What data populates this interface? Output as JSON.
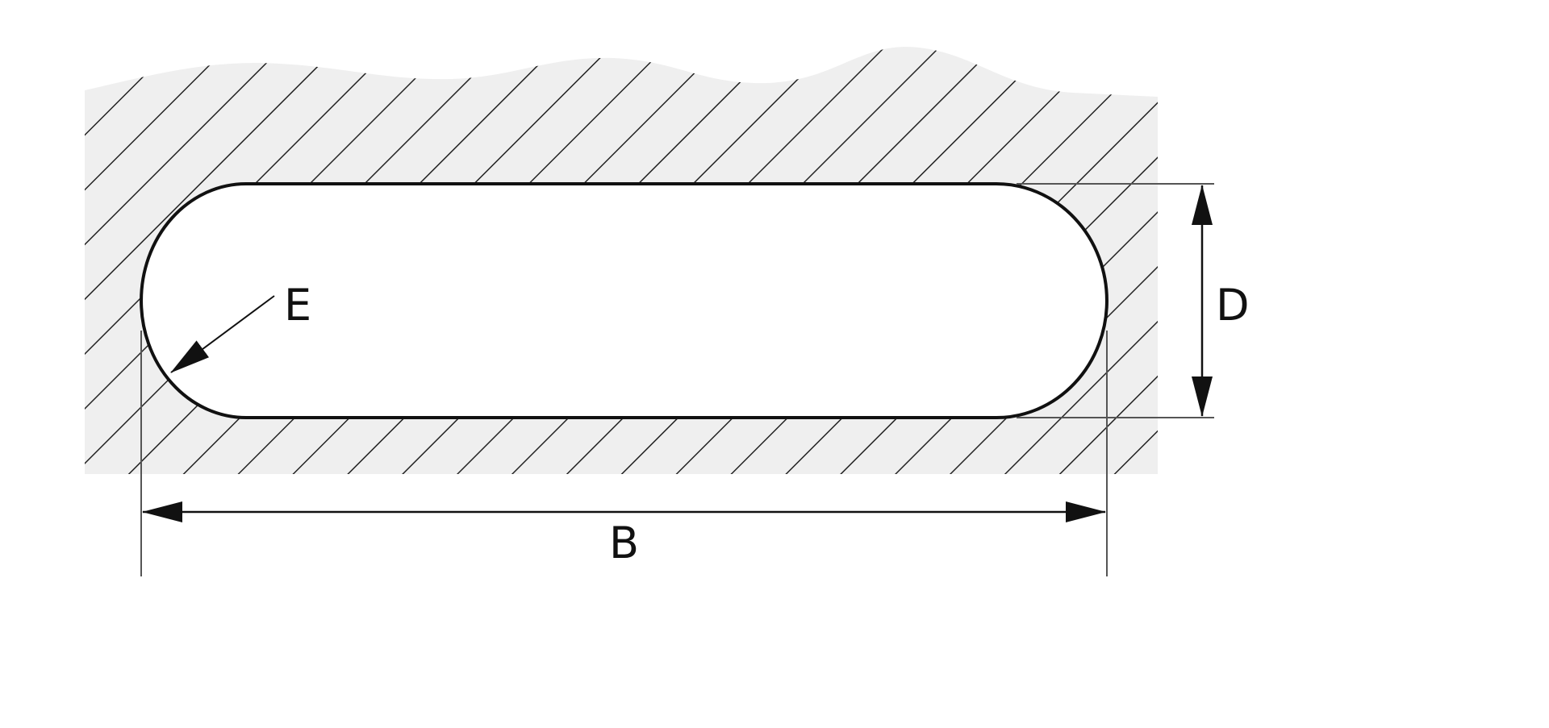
{
  "labels": {
    "width": "B",
    "height": "D",
    "radius": "E"
  },
  "colors": {
    "hatch_fill": "#efefef",
    "line": "#111111"
  }
}
